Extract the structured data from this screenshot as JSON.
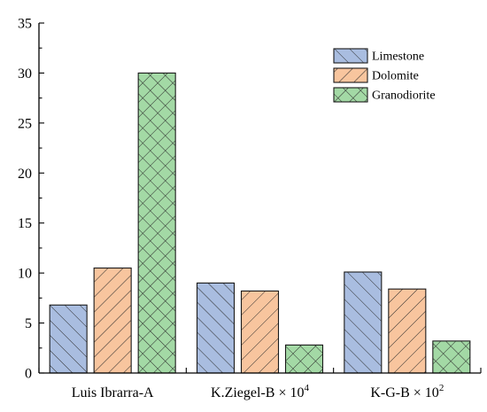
{
  "chart_data": {
    "type": "bar",
    "title": "",
    "xlabel": "",
    "ylabel": "",
    "ylim": [
      0,
      35
    ],
    "yticks": [
      0,
      5,
      10,
      15,
      20,
      25,
      30,
      35
    ],
    "grid": false,
    "legend_position": "top-right",
    "categories": [
      {
        "base": "Luis Ibrarra-A",
        "sup": ""
      },
      {
        "base": "K.Ziegel-B × 10",
        "sup": "4"
      },
      {
        "base": "K-G-B × 10",
        "sup": "2"
      }
    ],
    "series": [
      {
        "name": "Limestone",
        "color": "#a9bde0",
        "hatch": "forward-diagonal",
        "values": [
          6.8,
          9.0,
          10.1
        ]
      },
      {
        "name": "Dolomite",
        "color": "#f8c59e",
        "hatch": "back-diagonal",
        "values": [
          10.5,
          8.2,
          8.4
        ]
      },
      {
        "name": "Granodiorite",
        "color": "#a3d9a5",
        "hatch": "crosshatch",
        "values": [
          30.0,
          2.8,
          3.2
        ]
      }
    ]
  }
}
